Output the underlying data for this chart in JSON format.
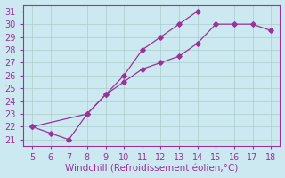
{
  "xlabel": "Windchill (Refroidissement éolien,°C)",
  "xlim": [
    5,
    18
  ],
  "ylim": [
    21,
    31
  ],
  "xticks": [
    5,
    6,
    7,
    8,
    9,
    10,
    11,
    12,
    13,
    14,
    15,
    16,
    17,
    18
  ],
  "yticks": [
    21,
    22,
    23,
    24,
    25,
    26,
    27,
    28,
    29,
    30,
    31
  ],
  "upper_x": [
    5,
    6,
    7,
    8,
    9,
    10,
    11,
    12,
    13,
    14
  ],
  "upper_y": [
    22.0,
    21.5,
    21.0,
    23.0,
    24.5,
    26.0,
    28.0,
    29.0,
    30.0,
    31.0
  ],
  "lower_x": [
    5,
    8,
    9,
    10,
    11,
    12,
    13,
    14,
    15,
    16,
    17,
    18
  ],
  "lower_y": [
    22.0,
    23.0,
    24.5,
    25.5,
    26.5,
    27.0,
    27.5,
    28.5,
    30.0,
    30.0,
    30.0,
    29.5
  ],
  "color": "#993399",
  "bg_color": "#cce8f0",
  "grid_color": "#aacccc",
  "tick_fontsize": 7,
  "label_fontsize": 7.5
}
